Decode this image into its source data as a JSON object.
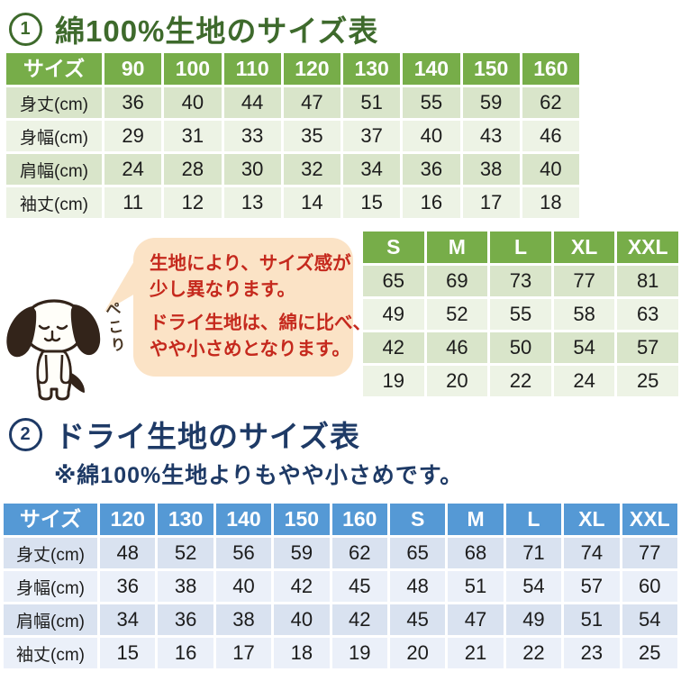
{
  "colors": {
    "green_header": "#77ad49",
    "green_band_dark": "#d9e5ca",
    "green_band_light": "#edf3e5",
    "green_title": "#3e6a2c",
    "blue_header": "#5599d5",
    "blue_band_dark": "#d9e2f0",
    "blue_band_light": "#ebf0f9",
    "navy_title": "#1e3a66",
    "bubble_bg": "#fbe3c6",
    "bubble_text_red": "#c5291d"
  },
  "section1": {
    "number": "1",
    "title": "綿100%生地のサイズ表"
  },
  "cotton_table": {
    "header": [
      "サイズ",
      "90",
      "100",
      "110",
      "120",
      "130",
      "140",
      "150",
      "160"
    ],
    "rows": [
      {
        "label": "身丈(cm)",
        "values": [
          "36",
          "40",
          "44",
          "47",
          "51",
          "55",
          "59",
          "62"
        ]
      },
      {
        "label": "身幅(cm)",
        "values": [
          "29",
          "31",
          "33",
          "35",
          "37",
          "40",
          "43",
          "46"
        ]
      },
      {
        "label": "肩幅(cm)",
        "values": [
          "24",
          "28",
          "30",
          "32",
          "34",
          "36",
          "38",
          "40"
        ]
      },
      {
        "label": "袖丈(cm)",
        "values": [
          "11",
          "12",
          "13",
          "14",
          "15",
          "16",
          "17",
          "18"
        ]
      }
    ]
  },
  "adult_table": {
    "header": [
      "S",
      "M",
      "L",
      "XL",
      "XXL"
    ],
    "rows": [
      {
        "values": [
          "65",
          "69",
          "73",
          "77",
          "81"
        ]
      },
      {
        "values": [
          "49",
          "52",
          "55",
          "58",
          "63"
        ]
      },
      {
        "values": [
          "42",
          "46",
          "50",
          "54",
          "57"
        ]
      },
      {
        "values": [
          "19",
          "20",
          "22",
          "24",
          "25"
        ]
      }
    ]
  },
  "bubble": {
    "line1": "生地により、サイズ感が",
    "line2": "少し異なります。",
    "line3": "ドライ生地は、綿に比べ、",
    "line4": "やや小さめとなります。"
  },
  "dog_caption": "ぺこり",
  "section2": {
    "number": "2",
    "title": "ドライ生地のサイズ表",
    "subtitle": "※綿100%生地よりもやや小さめです。"
  },
  "dry_table": {
    "header": [
      "サイズ",
      "120",
      "130",
      "140",
      "150",
      "160",
      "S",
      "M",
      "L",
      "XL",
      "XXL"
    ],
    "rows": [
      {
        "label": "身丈(cm)",
        "values": [
          "48",
          "52",
          "56",
          "59",
          "62",
          "65",
          "68",
          "71",
          "74",
          "77"
        ]
      },
      {
        "label": "身幅(cm)",
        "values": [
          "36",
          "38",
          "40",
          "42",
          "45",
          "48",
          "51",
          "54",
          "57",
          "60"
        ]
      },
      {
        "label": "肩幅(cm)",
        "values": [
          "34",
          "36",
          "38",
          "40",
          "42",
          "45",
          "47",
          "49",
          "51",
          "54"
        ]
      },
      {
        "label": "袖丈(cm)",
        "values": [
          "15",
          "16",
          "17",
          "18",
          "19",
          "20",
          "21",
          "22",
          "23",
          "25"
        ]
      }
    ]
  }
}
